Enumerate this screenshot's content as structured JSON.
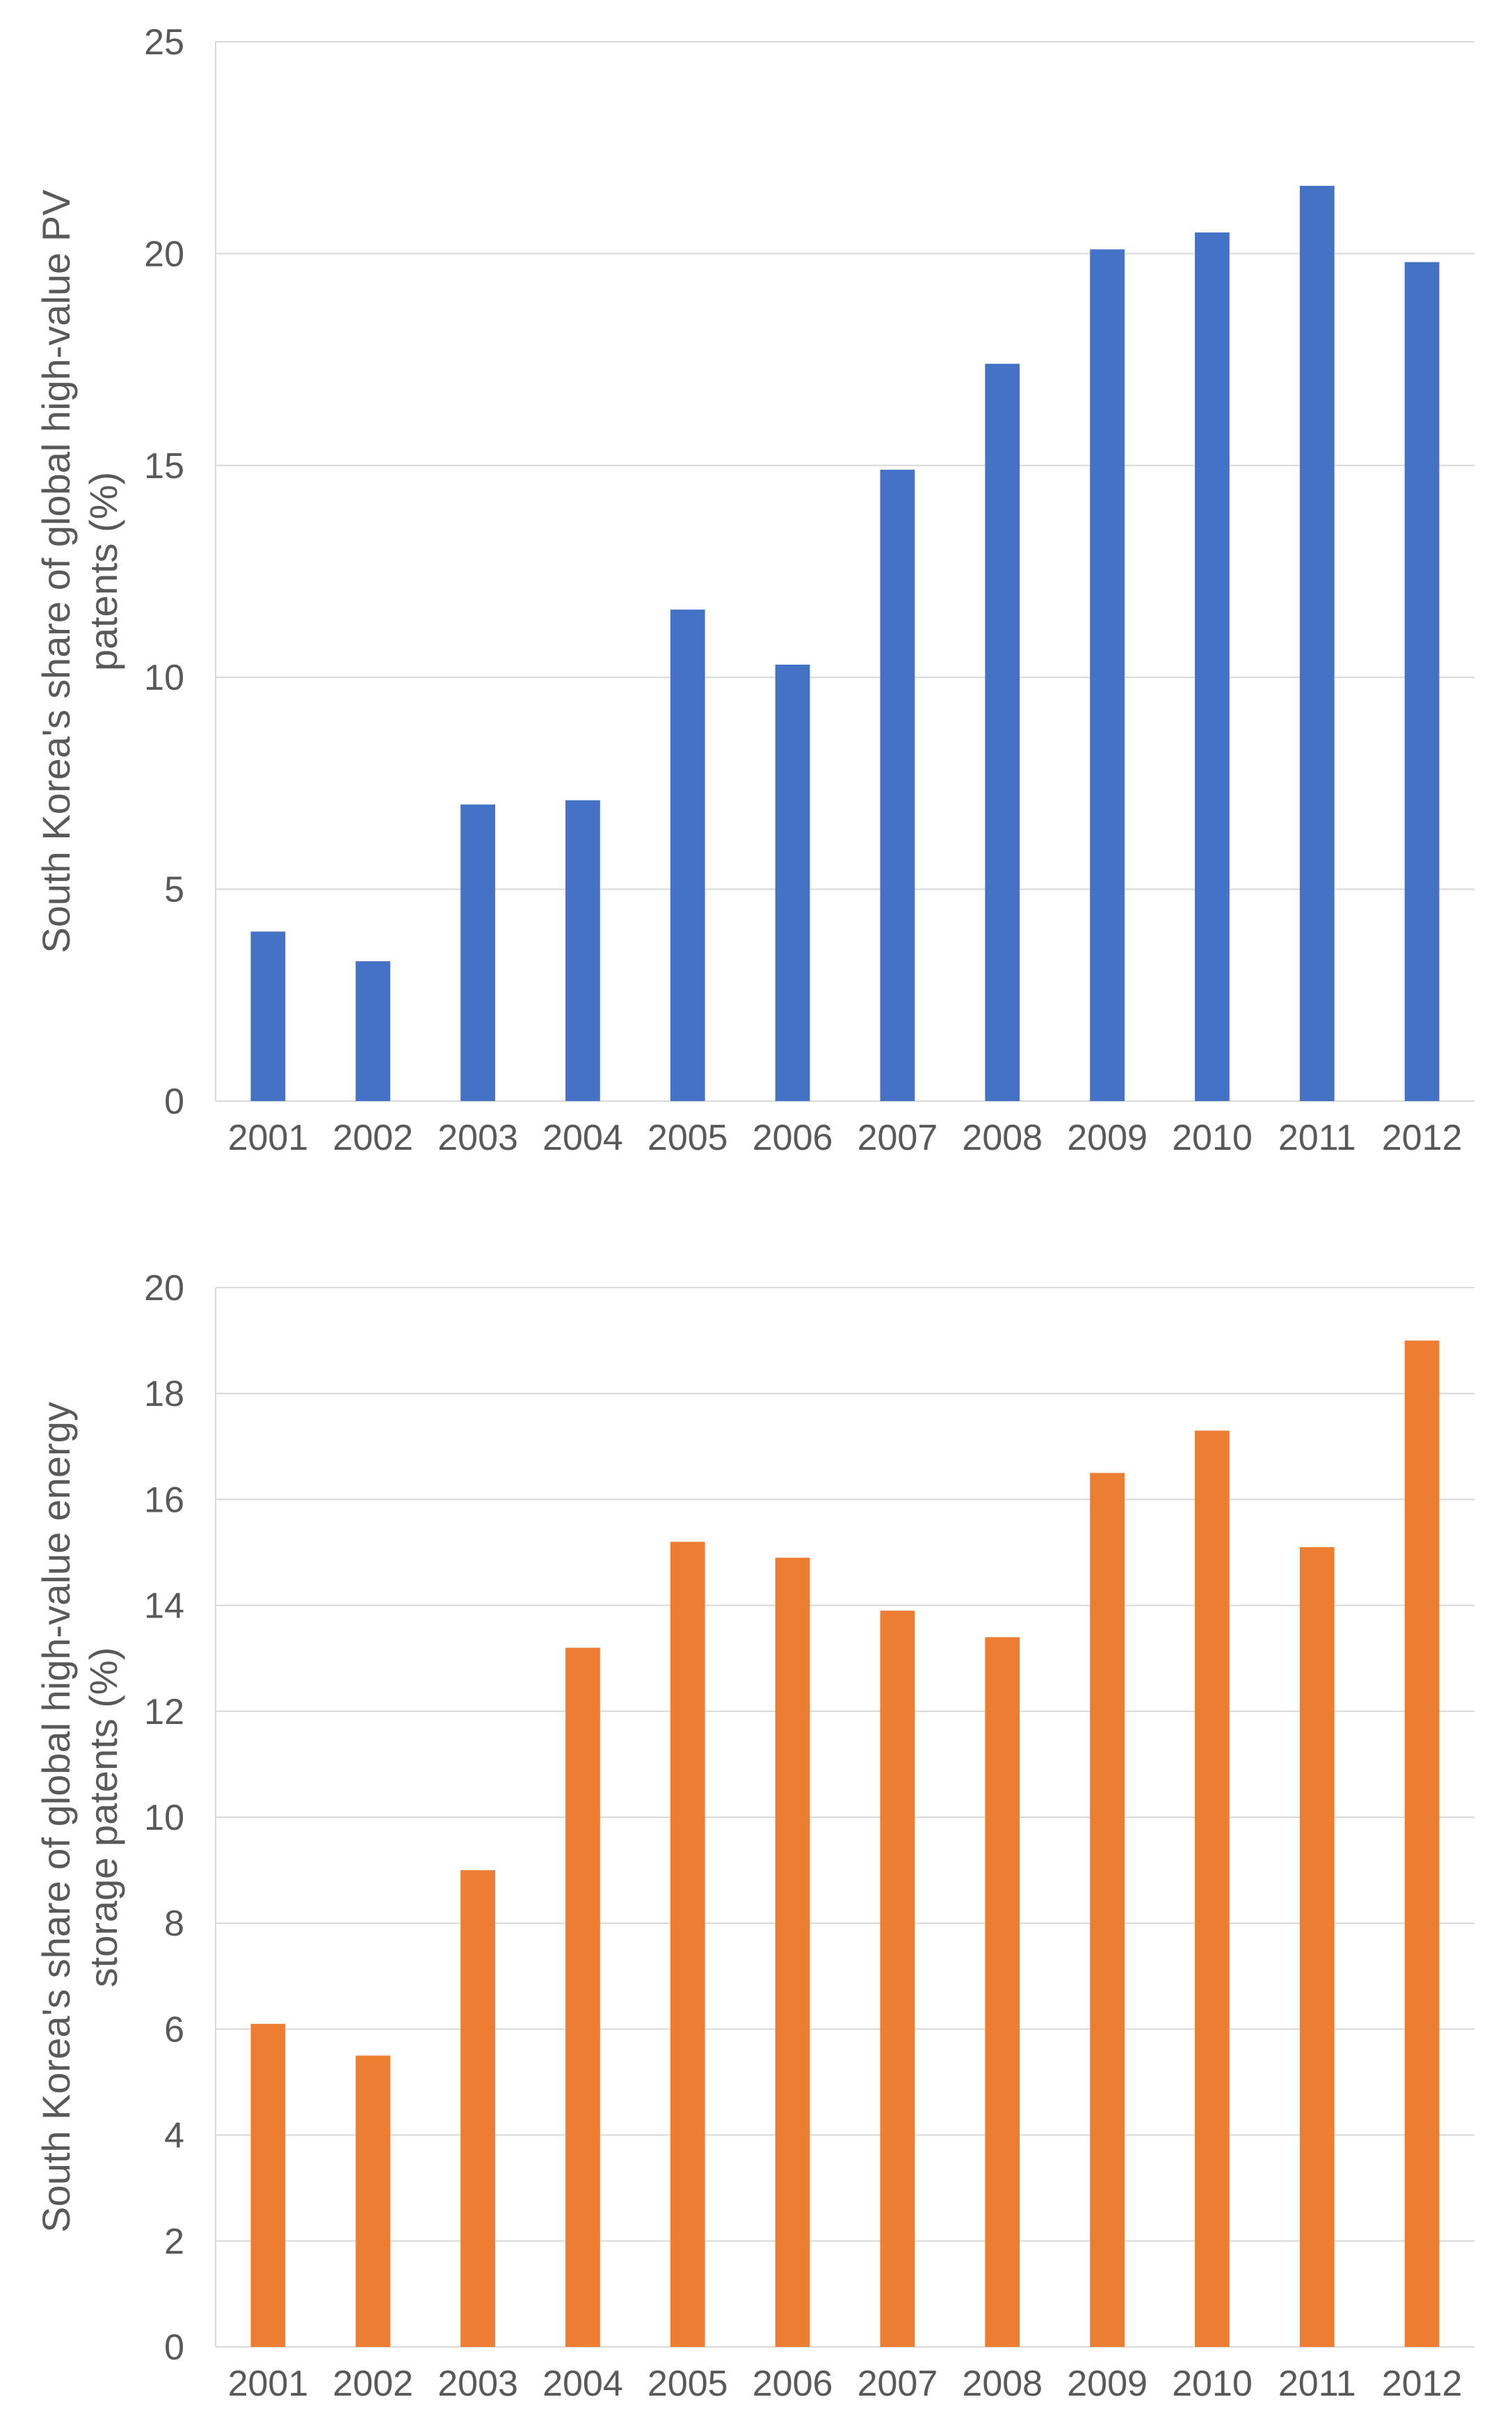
{
  "chart_data": [
    {
      "type": "bar",
      "title": "",
      "xlabel": "",
      "ylabel_lines": [
        "South Korea's share of global high-value PV",
        "patents (%)"
      ],
      "categories": [
        "2001",
        "2002",
        "2003",
        "2004",
        "2005",
        "2006",
        "2007",
        "2008",
        "2009",
        "2010",
        "2011",
        "2012"
      ],
      "values": [
        4.0,
        3.3,
        7.0,
        7.1,
        11.6,
        10.3,
        14.9,
        17.4,
        20.1,
        20.5,
        21.6,
        19.8
      ],
      "ylim": [
        0,
        25
      ],
      "yticks": [
        "0",
        "5",
        "10",
        "15",
        "20",
        "25"
      ],
      "color": "#4472C4",
      "grid": true
    },
    {
      "type": "bar",
      "title": "",
      "xlabel": "",
      "ylabel_lines": [
        "South Korea's share of global high-value energy",
        "storage patents (%)"
      ],
      "categories": [
        "2001",
        "2002",
        "2003",
        "2004",
        "2005",
        "2006",
        "2007",
        "2008",
        "2009",
        "2010",
        "2011",
        "2012"
      ],
      "values": [
        6.1,
        5.5,
        9.0,
        13.2,
        15.2,
        14.9,
        13.9,
        13.4,
        16.5,
        17.3,
        15.1,
        19.0
      ],
      "ylim": [
        0,
        20
      ],
      "yticks": [
        "0",
        "2",
        "4",
        "6",
        "8",
        "10",
        "12",
        "14",
        "16",
        "18",
        "20"
      ],
      "color": "#ED7D31",
      "grid": true
    }
  ]
}
